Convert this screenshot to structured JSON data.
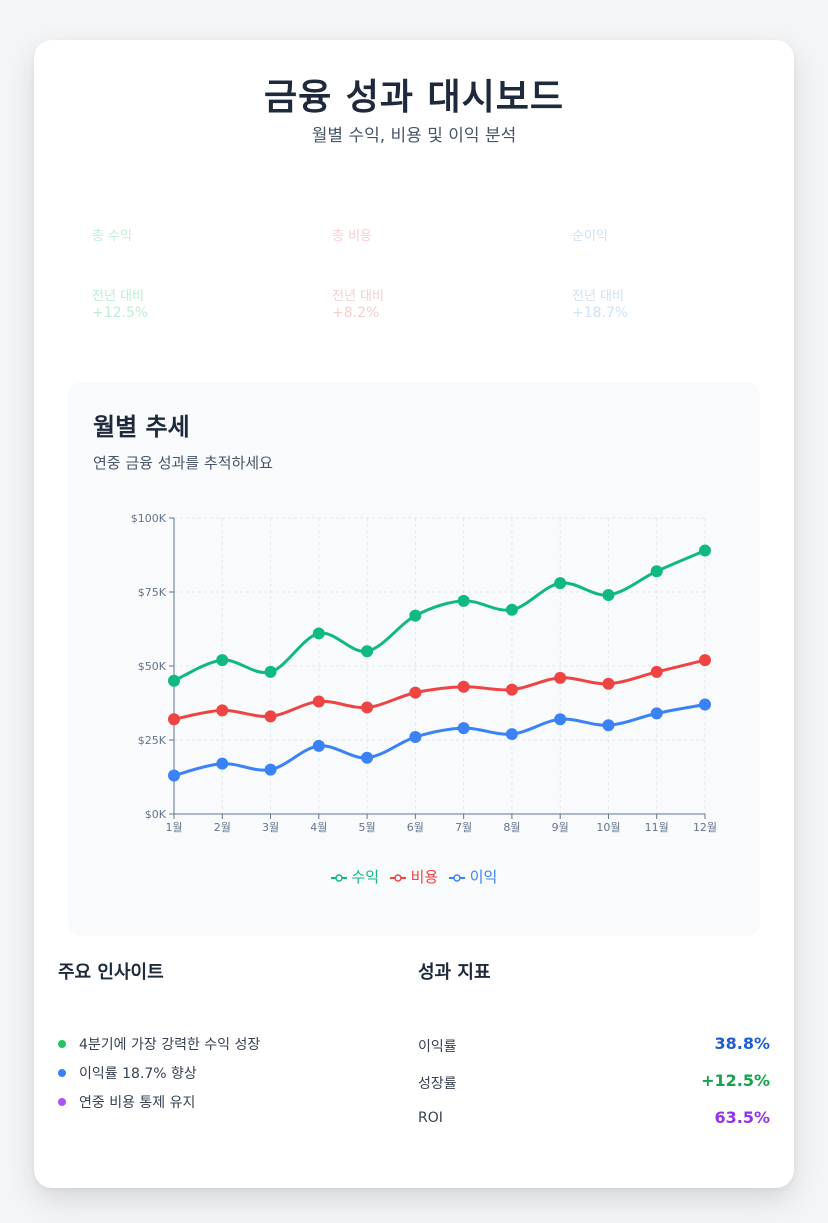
{
  "header": {
    "title": "금융 성과 대시보드",
    "subtitle": "월별 수익, 비용 및 이익 분석"
  },
  "kpis": [
    {
      "label": "총 수익",
      "compare": "전년 대비",
      "change": "+12.5%"
    },
    {
      "label": "총 비용",
      "compare": "전년 대비",
      "change": "+8.2%"
    },
    {
      "label": "순이익",
      "compare": "전년 대비",
      "change": "+18.7%"
    }
  ],
  "panel": {
    "title": "월별 추세",
    "subtitle": "연중 금융 성과를 추적하세요"
  },
  "colors": {
    "revenue": "#10b981",
    "cost": "#ef4444",
    "profit": "#3b82f6",
    "green_text": "#16a34a",
    "blue_text": "#1d5fd1",
    "purple_text": "#9333ea"
  },
  "chart_data": {
    "type": "line",
    "categories": [
      "1월",
      "2월",
      "3월",
      "4월",
      "5월",
      "6월",
      "7월",
      "8월",
      "9월",
      "10월",
      "11월",
      "12월"
    ],
    "series": [
      {
        "name": "수익",
        "values": [
          45000,
          52000,
          48000,
          61000,
          55000,
          67000,
          72000,
          69000,
          78000,
          74000,
          82000,
          89000
        ]
      },
      {
        "name": "비용",
        "values": [
          32000,
          35000,
          33000,
          38000,
          36000,
          41000,
          43000,
          42000,
          46000,
          44000,
          48000,
          52000
        ]
      },
      {
        "name": "이익",
        "values": [
          13000,
          17000,
          15000,
          23000,
          19000,
          26000,
          29000,
          27000,
          32000,
          30000,
          34000,
          37000
        ]
      }
    ],
    "yticks": [
      "$0K",
      "$25K",
      "$50K",
      "$75K",
      "$100K"
    ],
    "ylim": [
      0,
      100000
    ],
    "grid": true,
    "legend": "bottom-center"
  },
  "insights": {
    "title": "주요 인사이트",
    "items": [
      {
        "text": "4분기에 가장 강력한 수익 성장",
        "color": "#22c55e"
      },
      {
        "text": "이익률 18.7% 향상",
        "color": "#3b82f6"
      },
      {
        "text": "연중 비용 통제 유지",
        "color": "#a855f7"
      }
    ]
  },
  "metrics": {
    "title": "성과 지표",
    "items": [
      {
        "label": "이익률",
        "value": "38.8%"
      },
      {
        "label": "성장률",
        "value": "+12.5%"
      },
      {
        "label": "ROI",
        "value": "63.5%"
      }
    ]
  }
}
